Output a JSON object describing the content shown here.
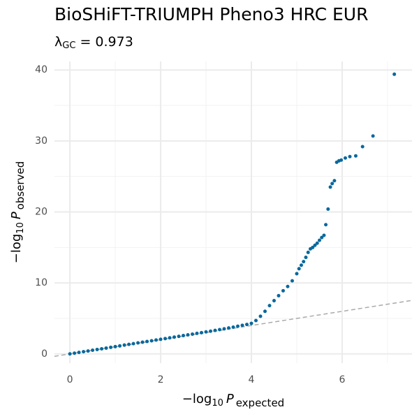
{
  "chart_data": {
    "type": "scatter",
    "title": "BioSHiFT-TRIUMPH Pheno3 HRC EUR",
    "subtitle": {
      "symbol": "λ",
      "subscript": "GC",
      "text": " = 0.973"
    },
    "x_label": {
      "prefix": "−log",
      "subscript": "10",
      "variable": "P",
      "variable_subscript": "expected"
    },
    "y_label": {
      "prefix": "−log",
      "subscript": "10",
      "variable": "P",
      "variable_subscript": "observed"
    },
    "color": "#08689c",
    "xlim": [
      -0.34,
      7.54
    ],
    "ylim": [
      -1.3,
      41.2
    ],
    "xticks": [
      0,
      2,
      4,
      6
    ],
    "yticks": [
      0,
      10,
      20,
      30,
      40
    ],
    "x_minor_ticks": [
      1,
      3,
      5,
      7
    ],
    "y_minor_ticks": [
      5,
      15,
      25,
      35
    ],
    "grid": true,
    "reference_line": {
      "slope": 1,
      "intercept": 0,
      "color": "#aaaaaa"
    },
    "x": [
      0,
      0.1,
      0.2,
      0.3,
      0.4,
      0.5,
      0.6,
      0.7,
      0.8,
      0.9,
      1,
      1.1,
      1.2,
      1.3,
      1.4,
      1.5,
      1.6,
      1.7,
      1.8,
      1.9,
      2,
      2.1,
      2.2,
      2.3,
      2.4,
      2.5,
      2.6,
      2.7,
      2.8,
      2.9,
      3,
      3.1,
      3.2,
      3.3,
      3.4,
      3.5,
      3.6,
      3.7,
      3.8,
      3.9,
      4,
      4.1,
      4.2,
      4.3,
      4.4,
      4.5,
      4.6,
      4.7,
      4.8,
      4.9,
      5,
      5.05,
      5.1,
      5.15,
      5.2,
      5.25,
      5.3,
      5.35,
      5.4,
      5.45,
      5.5,
      5.55,
      5.6,
      5.64,
      5.69,
      5.74,
      5.78,
      5.83,
      5.88,
      5.93,
      5.98,
      6.07,
      6.17,
      6.3,
      6.45,
      6.68,
      7.15
    ],
    "values": [
      0,
      0.1,
      0.21,
      0.31,
      0.41,
      0.52,
      0.62,
      0.72,
      0.82,
      0.93,
      1.03,
      1.13,
      1.24,
      1.34,
      1.44,
      1.55,
      1.65,
      1.75,
      1.85,
      1.96,
      2.06,
      2.16,
      2.27,
      2.37,
      2.47,
      2.58,
      2.68,
      2.78,
      2.89,
      2.99,
      3.1,
      3.2,
      3.31,
      3.42,
      3.53,
      3.65,
      3.77,
      3.9,
      4.03,
      4.15,
      4.3,
      4.7,
      5.3,
      6,
      6.8,
      7.5,
      8.2,
      8.9,
      9.5,
      10.3,
      11.3,
      12,
      12.5,
      13,
      13.6,
      14.3,
      14.8,
      15,
      15.3,
      15.6,
      16,
      16.4,
      16.7,
      18.2,
      20.4,
      23.5,
      24,
      24.4,
      27,
      27.2,
      27.3,
      27.6,
      27.8,
      27.9,
      29.2,
      30.7,
      39.4
    ]
  }
}
